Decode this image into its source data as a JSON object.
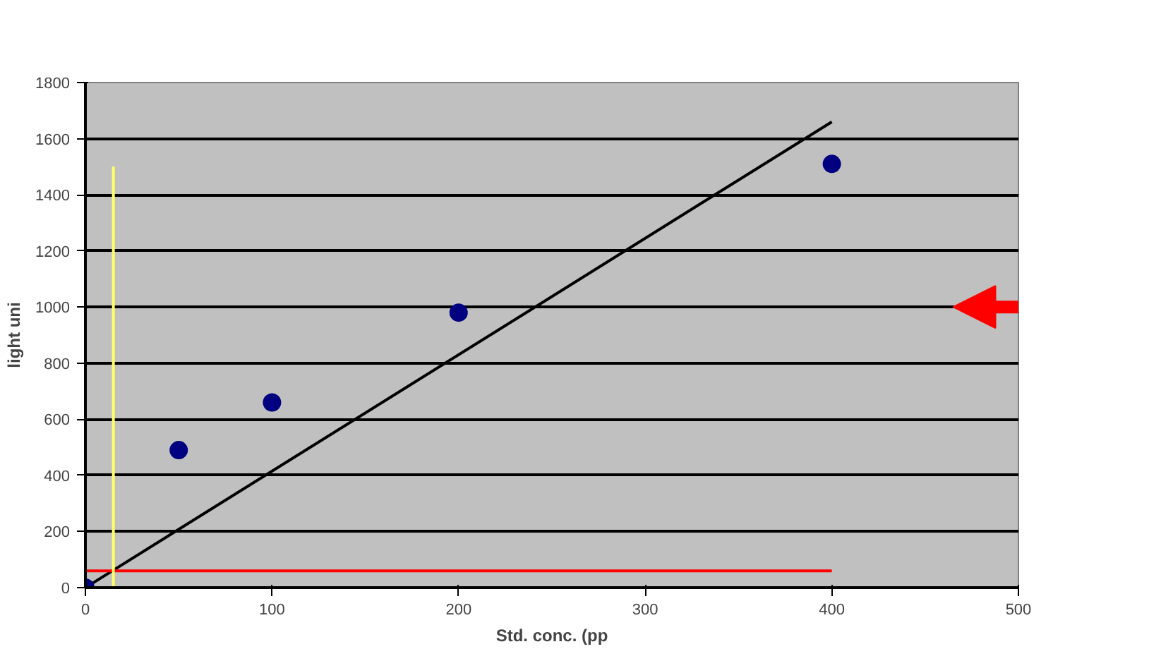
{
  "chart_data": {
    "type": "scatter",
    "xlabel": "Std. conc. (pp",
    "ylabel": "light uni",
    "xlim": [
      0,
      500
    ],
    "xticks": [
      0,
      100,
      200,
      300,
      400,
      500
    ],
    "ylim": [
      0,
      1800
    ],
    "yticks": [
      0,
      200,
      400,
      600,
      800,
      1000,
      1200,
      1400,
      1600,
      1800
    ],
    "grid": "y",
    "series": [
      {
        "type": "line",
        "marker": "none",
        "color": "#000000",
        "x": [
          0,
          400
        ],
        "values": [
          0,
          1660
        ]
      },
      {
        "type": "line",
        "marker": "none",
        "color": "#ff0000",
        "x": [
          0,
          400
        ],
        "values": [
          60,
          60
        ]
      },
      {
        "type": "line",
        "marker": "none",
        "color": "#ffff66",
        "x": [
          15,
          15
        ],
        "values": [
          0,
          1500
        ]
      },
      {
        "marker": "circle",
        "color": "#000080",
        "x": [
          0,
          50,
          100,
          200,
          400
        ],
        "values": [
          0,
          490,
          660,
          980,
          1510
        ]
      }
    ]
  }
}
